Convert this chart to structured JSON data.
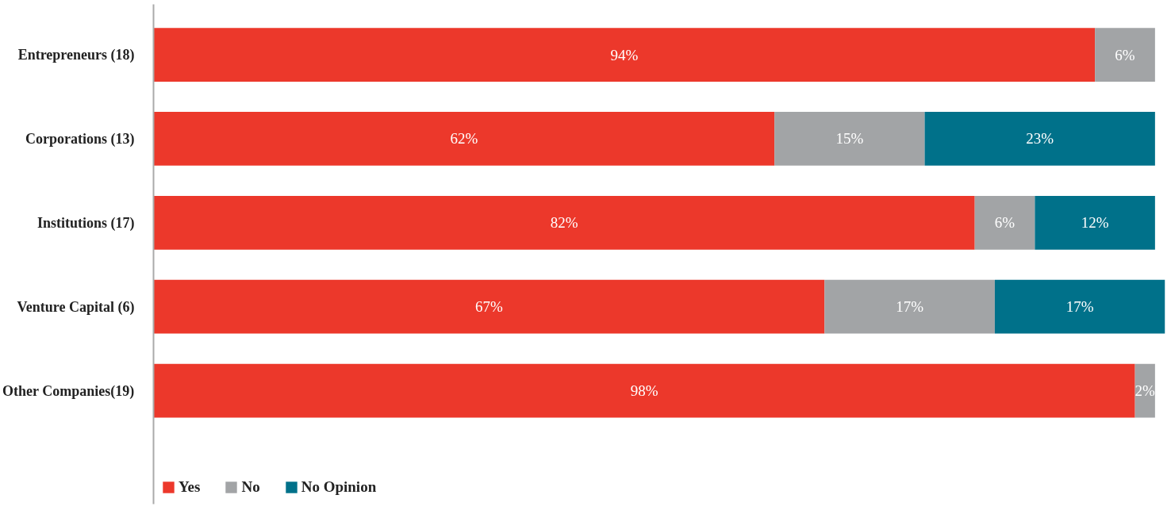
{
  "chart_data": {
    "type": "bar",
    "orientation": "horizontal",
    "stacked": true,
    "categories": [
      "Entrepreneurs (18)",
      "Corporations (13)",
      "Institutions (17)",
      "Venture Capital (6)",
      "Other Companies(19)"
    ],
    "series": [
      {
        "name": "Yes",
        "color": "#ec382b",
        "values": [
          94,
          62,
          82,
          67,
          98
        ],
        "value_labels": [
          "94%",
          "62%",
          "82%",
          "67%",
          "98%"
        ]
      },
      {
        "name": "No",
        "color": "#a2a4a6",
        "values": [
          6,
          15,
          6,
          17,
          2
        ],
        "value_labels": [
          "6%",
          "15%",
          "6%",
          "17%",
          "2%"
        ]
      },
      {
        "name": "No Opinion",
        "color": "#00718a",
        "values": [
          null,
          23,
          12,
          17,
          null
        ],
        "value_labels": [
          null,
          "23%",
          "12%",
          "17%",
          null
        ]
      }
    ],
    "tick_labels": "y",
    "legend": "bottom left",
    "grid": false
  }
}
